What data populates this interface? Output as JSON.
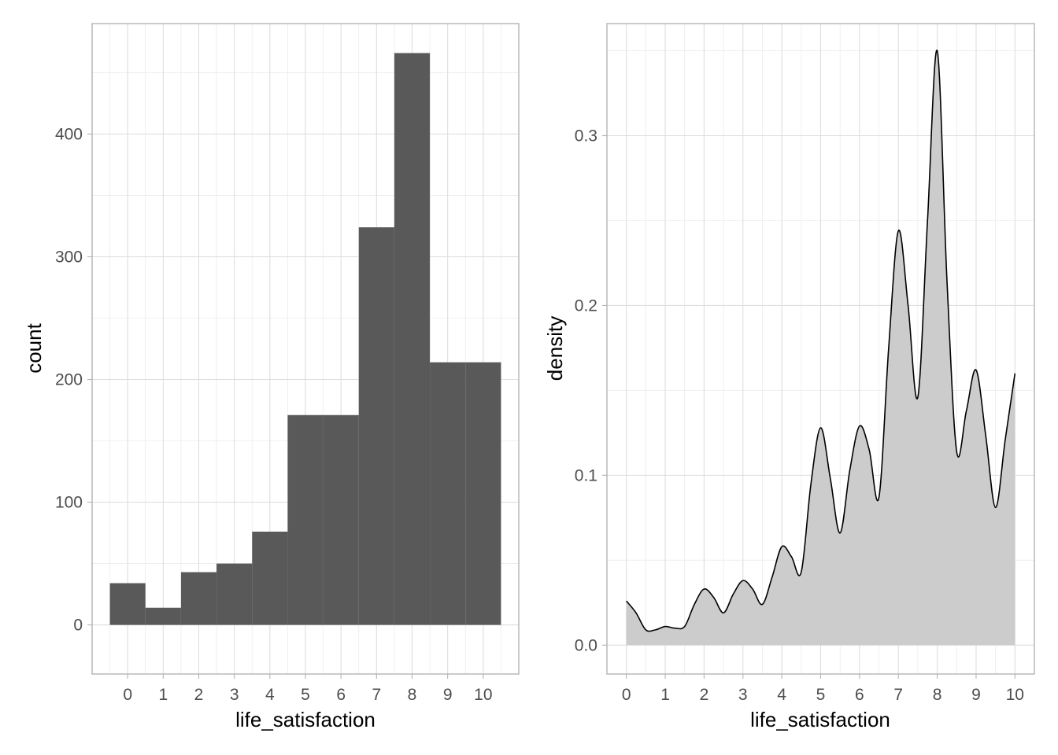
{
  "chart_data": [
    {
      "type": "bar",
      "subtype": "histogram",
      "xlabel": "life_satisfaction",
      "ylabel": "count",
      "categories": [
        0,
        1,
        2,
        3,
        4,
        5,
        6,
        7,
        8,
        9,
        10
      ],
      "values": [
        34,
        14,
        43,
        50,
        76,
        171,
        171,
        324,
        466,
        214,
        214
      ],
      "xlim": [
        -1,
        11
      ],
      "ylim": [
        -40,
        490
      ],
      "x_ticks": [
        "0",
        "1",
        "2",
        "3",
        "4",
        "5",
        "6",
        "7",
        "8",
        "9",
        "10"
      ],
      "y_ticks": [
        "0",
        "100",
        "200",
        "300",
        "400"
      ],
      "y_tick_values": [
        0,
        100,
        200,
        300,
        400
      ],
      "bar_color": "#595959",
      "grid": true
    },
    {
      "type": "area",
      "subtype": "density",
      "xlabel": "life_satisfaction",
      "ylabel": "density",
      "x": [
        0,
        0.25,
        0.5,
        0.75,
        1,
        1.25,
        1.5,
        1.75,
        2,
        2.25,
        2.5,
        2.75,
        3,
        3.25,
        3.5,
        3.75,
        4,
        4.25,
        4.5,
        4.75,
        5,
        5.25,
        5.5,
        5.75,
        6,
        6.25,
        6.5,
        6.75,
        7,
        7.25,
        7.5,
        7.75,
        8,
        8.25,
        8.5,
        8.75,
        9,
        9.25,
        9.5,
        9.75,
        10
      ],
      "y": [
        0.026,
        0.019,
        0.009,
        0.009,
        0.011,
        0.01,
        0.011,
        0.024,
        0.033,
        0.028,
        0.019,
        0.03,
        0.038,
        0.033,
        0.024,
        0.04,
        0.058,
        0.052,
        0.043,
        0.095,
        0.128,
        0.098,
        0.066,
        0.103,
        0.129,
        0.115,
        0.087,
        0.175,
        0.244,
        0.2,
        0.146,
        0.25,
        0.35,
        0.215,
        0.114,
        0.138,
        0.162,
        0.123,
        0.081,
        0.121,
        0.16
      ],
      "xlim": [
        -0.5,
        10.5
      ],
      "ylim": [
        -0.017,
        0.366
      ],
      "x_ticks": [
        "0",
        "1",
        "2",
        "3",
        "4",
        "5",
        "6",
        "7",
        "8",
        "9",
        "10"
      ],
      "x_tick_values": [
        0,
        1,
        2,
        3,
        4,
        5,
        6,
        7,
        8,
        9,
        10
      ],
      "y_ticks": [
        "0.0",
        "0.1",
        "0.2",
        "0.3"
      ],
      "y_tick_values": [
        0,
        0.1,
        0.2,
        0.3
      ],
      "fill_color": "#cccccc",
      "line_color": "#000000",
      "grid": true
    }
  ]
}
